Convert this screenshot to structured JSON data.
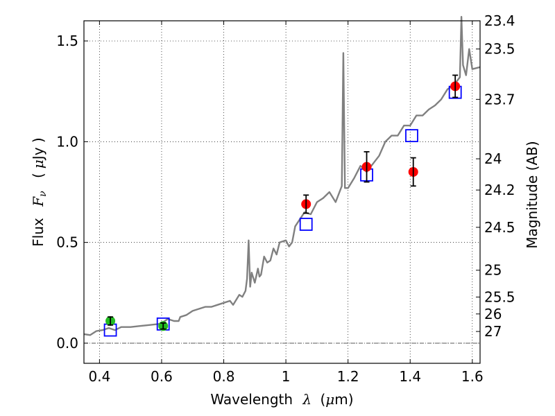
{
  "chart_data": {
    "type": "scatter",
    "title": "",
    "xlabel": {
      "text": "Wavelength",
      "symbol": "λ",
      "unit_open": "(",
      "unit_mu": "μ",
      "unit_rest": "m)"
    },
    "ylabel": {
      "text": "Flux",
      "symbol_main": "F",
      "symbol_sub": "ν",
      "unit_open": "(",
      "unit_mu": "μ",
      "unit_rest": "Jy )"
    },
    "ylabel_right": "Magnitude (AB)",
    "xlim": [
      0.35,
      1.625
    ],
    "ylim": [
      -0.1,
      1.6
    ],
    "grid": true,
    "x_ticks": [
      {
        "value": 0.4,
        "label": "0.4"
      },
      {
        "value": 0.6,
        "label": "0.6"
      },
      {
        "value": 0.8,
        "label": "0.8"
      },
      {
        "value": 1.0,
        "label": "1"
      },
      {
        "value": 1.2,
        "label": "1.2"
      },
      {
        "value": 1.4,
        "label": "1.4"
      },
      {
        "value": 1.6,
        "label": "1.6"
      }
    ],
    "y_ticks": [
      {
        "value": 0.0,
        "label": "0.0"
      },
      {
        "value": 0.5,
        "label": "0.5"
      },
      {
        "value": 1.0,
        "label": "1.0"
      },
      {
        "value": 1.5,
        "label": "1.5"
      }
    ],
    "right_ticks": [
      {
        "flux": 1.6,
        "label": "23.4"
      },
      {
        "flux": 1.46,
        "label": "23.5"
      },
      {
        "flux": 1.21,
        "label": "23.7"
      },
      {
        "flux": 0.915,
        "label": "24"
      },
      {
        "flux": 0.76,
        "label": "24.2"
      },
      {
        "flux": 0.575,
        "label": "24.5"
      },
      {
        "flux": 0.362,
        "label": "25"
      },
      {
        "flux": 0.229,
        "label": "25.5"
      },
      {
        "flux": 0.145,
        "label": "26"
      },
      {
        "flux": 0.058,
        "label": "27"
      }
    ],
    "zero_line": 0.0,
    "series": [
      {
        "kind": "line",
        "color": "#808080",
        "x": [
          0.35,
          0.37,
          0.39,
          0.41,
          0.43,
          0.45,
          0.47,
          0.5,
          0.53,
          0.56,
          0.59,
          0.6,
          0.62,
          0.64,
          0.655,
          0.66,
          0.68,
          0.7,
          0.72,
          0.74,
          0.76,
          0.78,
          0.8,
          0.82,
          0.83,
          0.85,
          0.86,
          0.87,
          0.875,
          0.88,
          0.885,
          0.89,
          0.9,
          0.91,
          0.915,
          0.92,
          0.93,
          0.94,
          0.95,
          0.96,
          0.97,
          0.98,
          1.0,
          1.01,
          1.02,
          1.03,
          1.06,
          1.08,
          1.1,
          1.12,
          1.14,
          1.16,
          1.18,
          1.185,
          1.19,
          1.2,
          1.22,
          1.24,
          1.26,
          1.28,
          1.3,
          1.32,
          1.34,
          1.36,
          1.38,
          1.4,
          1.42,
          1.44,
          1.46,
          1.48,
          1.5,
          1.52,
          1.54,
          1.56,
          1.565,
          1.57,
          1.58,
          1.59,
          1.6,
          1.625
        ],
        "y": [
          0.045,
          0.04,
          0.06,
          0.065,
          0.075,
          0.065,
          0.08,
          0.08,
          0.085,
          0.09,
          0.095,
          0.1,
          0.12,
          0.11,
          0.11,
          0.13,
          0.14,
          0.16,
          0.17,
          0.18,
          0.18,
          0.19,
          0.2,
          0.21,
          0.19,
          0.24,
          0.23,
          0.26,
          0.32,
          0.51,
          0.28,
          0.35,
          0.3,
          0.37,
          0.33,
          0.34,
          0.43,
          0.4,
          0.41,
          0.47,
          0.44,
          0.5,
          0.51,
          0.48,
          0.5,
          0.58,
          0.65,
          0.64,
          0.7,
          0.72,
          0.75,
          0.7,
          0.78,
          1.44,
          0.77,
          0.77,
          0.82,
          0.88,
          0.85,
          0.89,
          0.93,
          1.0,
          1.03,
          1.03,
          1.08,
          1.08,
          1.13,
          1.13,
          1.16,
          1.18,
          1.21,
          1.26,
          1.28,
          1.32,
          1.62,
          1.38,
          1.33,
          1.46,
          1.36,
          1.37
        ]
      },
      {
        "kind": "markers",
        "marker": "open-square",
        "color": "#0000ff",
        "x": [
          0.435,
          0.605,
          1.065,
          1.26,
          1.405,
          1.545
        ],
        "y": [
          0.065,
          0.095,
          0.59,
          0.835,
          1.03,
          1.245
        ]
      },
      {
        "kind": "markers",
        "marker": "filled-circle",
        "color": "#ff0000",
        "x": [
          1.065,
          1.26,
          1.41,
          1.545
        ],
        "y": [
          0.69,
          0.875,
          0.85,
          1.275
        ],
        "yerr": [
          0.045,
          0.075,
          0.07,
          0.055
        ]
      },
      {
        "kind": "markers",
        "marker": "filled-circle",
        "color": "#22bb22",
        "x": [
          0.435,
          0.605
        ],
        "y": [
          0.11,
          0.085
        ],
        "yerr": [
          0.02,
          0.015
        ]
      }
    ]
  }
}
